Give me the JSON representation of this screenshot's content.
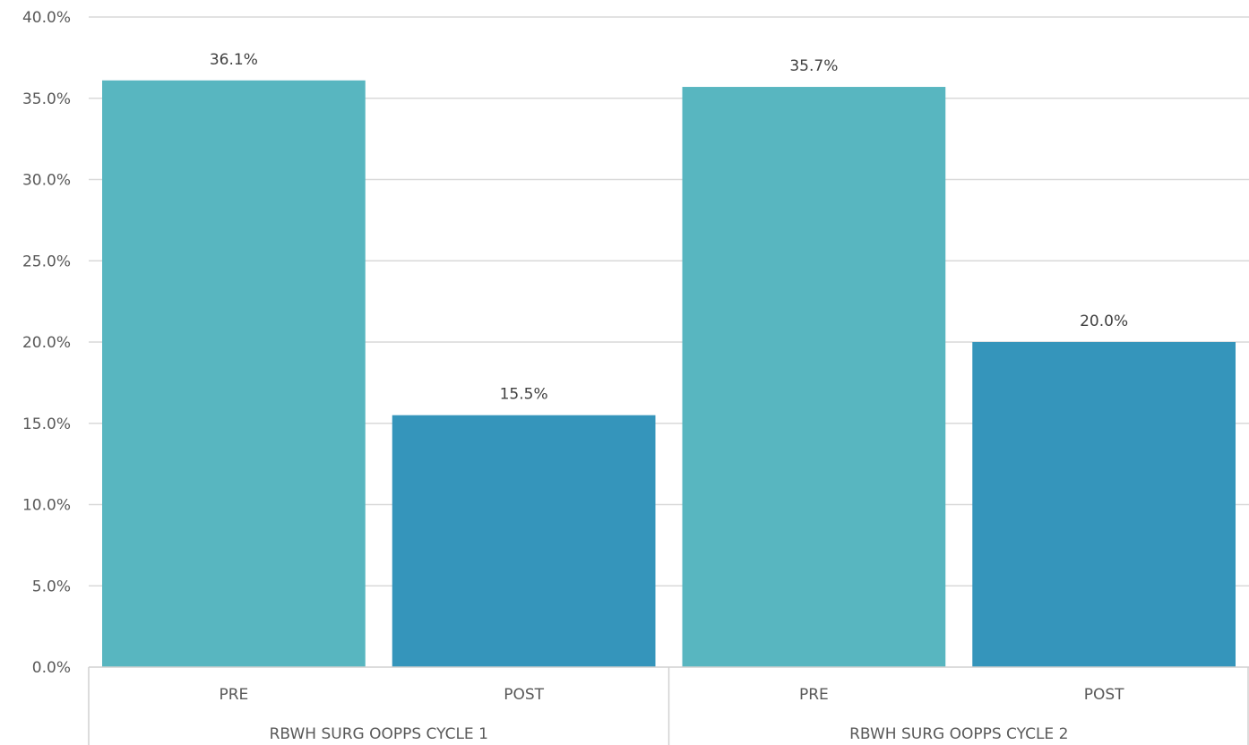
{
  "chart_data": {
    "type": "bar",
    "y_axis": {
      "min": 0,
      "max": 40,
      "step": 5,
      "tick_labels": [
        "0.0%",
        "5.0%",
        "10.0%",
        "15.0%",
        "20.0%",
        "25.0%",
        "30.0%",
        "35.0%",
        "40.0%"
      ]
    },
    "grid": true,
    "groups": [
      {
        "label": "RBWH SURG OOPPS CYCLE 1",
        "bars": [
          {
            "category": "PRE",
            "value": 36.1,
            "label": "36.1%",
            "color": "#58b6c0"
          },
          {
            "category": "POST",
            "value": 15.5,
            "label": "15.5%",
            "color": "#3595bb"
          }
        ]
      },
      {
        "label": "RBWH SURG OOPPS CYCLE 2",
        "bars": [
          {
            "category": "PRE",
            "value": 35.7,
            "label": "35.7%",
            "color": "#58b6c0"
          },
          {
            "category": "POST",
            "value": 20.0,
            "label": "20.0%",
            "color": "#3595bb"
          }
        ]
      }
    ]
  }
}
